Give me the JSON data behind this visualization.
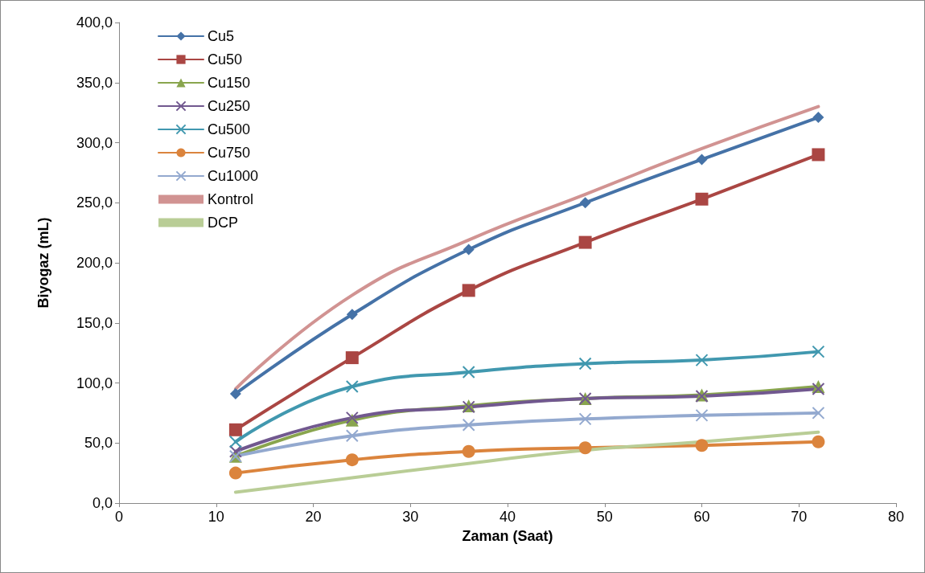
{
  "chart_data": {
    "type": "line",
    "xlabel": "Zaman (Saat)",
    "ylabel": "Biyogaz (mL)",
    "x": [
      12,
      24,
      36,
      48,
      60,
      72
    ],
    "xlim": [
      0,
      80
    ],
    "xticks": [
      0,
      10,
      20,
      30,
      40,
      50,
      60,
      70,
      80
    ],
    "ylim": [
      0,
      400
    ],
    "yticks": [
      {
        "value": 0,
        "label": "0,0"
      },
      {
        "value": 50,
        "label": "50,0"
      },
      {
        "value": 100,
        "label": "100,0"
      },
      {
        "value": 150,
        "label": "150,0"
      },
      {
        "value": 200,
        "label": "200,0"
      },
      {
        "value": 250,
        "label": "250,0"
      },
      {
        "value": 300,
        "label": "300,0"
      },
      {
        "value": 350,
        "label": "350,0"
      },
      {
        "value": 400,
        "label": "400,0"
      }
    ],
    "grid": false,
    "legend": "top left",
    "line_style": "solid",
    "series": [
      {
        "name": "Cu5",
        "color": "#4572a7",
        "marker": "diamond",
        "values": [
          91,
          157,
          211,
          250,
          286,
          321
        ]
      },
      {
        "name": "Cu50",
        "color": "#aa4643",
        "marker": "square",
        "values": [
          61,
          121,
          177,
          217,
          253,
          290
        ]
      },
      {
        "name": "Cu150",
        "color": "#89a54e",
        "marker": "triangle",
        "values": [
          39,
          69,
          81,
          87,
          90,
          97
        ]
      },
      {
        "name": "Cu250",
        "color": "#71588f",
        "marker": "cross",
        "values": [
          43,
          71,
          80,
          87,
          89,
          95
        ]
      },
      {
        "name": "Cu500",
        "color": "#4198af",
        "marker": "cross",
        "values": [
          51,
          97,
          109,
          116,
          119,
          126
        ]
      },
      {
        "name": "Cu750",
        "color": "#db843d",
        "marker": "circle",
        "values": [
          25,
          36,
          43,
          46,
          48,
          51
        ]
      },
      {
        "name": "Cu1000",
        "color": "#93a9cf",
        "marker": "cross",
        "values": [
          39,
          56,
          65,
          70,
          73,
          75
        ]
      },
      {
        "name": "Kontrol",
        "color": "#d19392",
        "marker": "none",
        "values": [
          95,
          173,
          219,
          257,
          295,
          330
        ]
      },
      {
        "name": "DCP",
        "color": "#b9cd96",
        "marker": "none",
        "values": [
          9,
          21,
          33,
          44,
          51,
          59
        ]
      }
    ]
  }
}
